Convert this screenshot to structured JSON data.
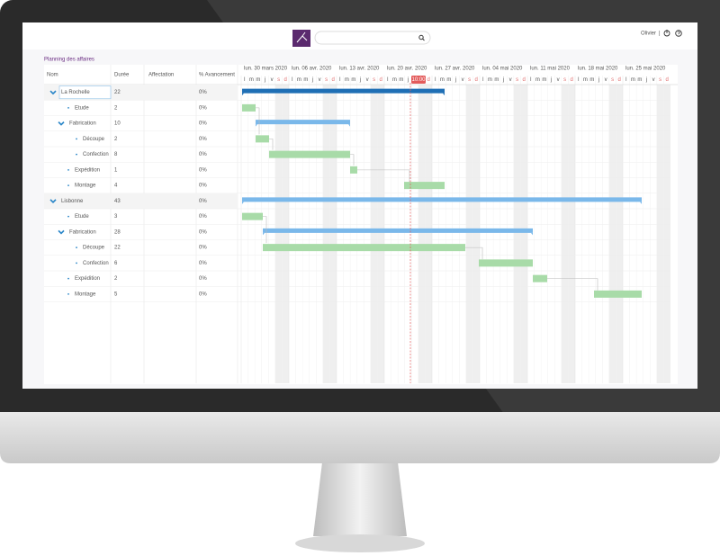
{
  "header": {
    "user": "Olivier",
    "separator": "|"
  },
  "page": {
    "title": "Planning des affaires"
  },
  "table": {
    "columns": [
      "Nom",
      "Durée",
      "Affectation",
      "% Avancement"
    ],
    "rows": [
      {
        "name": "La Rochelle",
        "duration": 22,
        "progress": "0%"
      },
      {
        "name": "Etude",
        "duration": 2,
        "progress": "0%"
      },
      {
        "name": "Fabrication",
        "duration": 10,
        "progress": "0%"
      },
      {
        "name": "Découpe",
        "duration": 2,
        "progress": "0%"
      },
      {
        "name": "Confection",
        "duration": 8,
        "progress": "0%"
      },
      {
        "name": "Expédition",
        "duration": 1,
        "progress": "0%"
      },
      {
        "name": "Montage",
        "duration": 4,
        "progress": "0%"
      },
      {
        "name": "Lisbonne",
        "duration": 43,
        "progress": "0%"
      },
      {
        "name": "Etude",
        "duration": 3,
        "progress": "0%"
      },
      {
        "name": "Fabrication",
        "duration": 28,
        "progress": "0%"
      },
      {
        "name": "Découpe",
        "duration": 22,
        "progress": "0%"
      },
      {
        "name": "Confection",
        "duration": 6,
        "progress": "0%"
      },
      {
        "name": "Expédition",
        "duration": 2,
        "progress": "0%"
      },
      {
        "name": "Montage",
        "duration": 5,
        "progress": "0%"
      }
    ]
  },
  "gantt": {
    "weeks": [
      "lun. 30 mars 2020",
      "lun. 06 avr. 2020",
      "lun. 13 avr. 2020",
      "lun. 20 avr. 2020",
      "lun. 27 avr. 2020",
      "lun. 04 mai 2020",
      "lun. 11 mai 2020",
      "lun. 18 mai 2020",
      "lun. 25 mai 2020"
    ],
    "day_letters": [
      "l",
      "m",
      "m",
      "j",
      "v",
      "s",
      "d"
    ],
    "today": "10:00"
  }
}
